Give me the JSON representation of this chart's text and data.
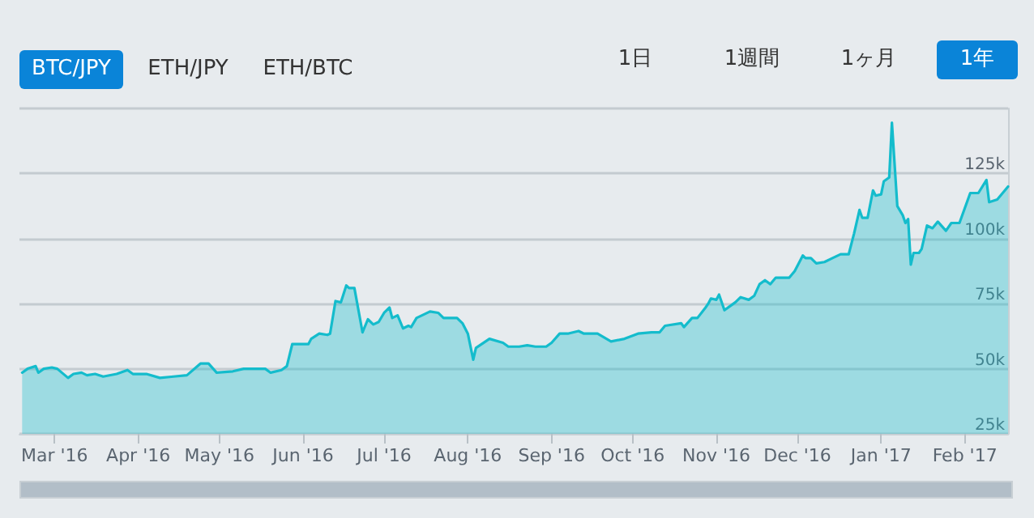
{
  "chart_data": {
    "type": "area",
    "annotations": [
      "BTC/JPY",
      "ETH/JPY",
      "ETH/BTC",
      "1日",
      "1週間",
      "1ヶ月",
      "1年"
    ],
    "x": [
      "2016-02-18",
      "2016-02-20",
      "2016-02-23",
      "2016-02-24",
      "2016-02-26",
      "2016-02-29",
      "2016-03-02",
      "2016-03-06",
      "2016-03-08",
      "2016-03-11",
      "2016-03-13",
      "2016-03-16",
      "2016-03-19",
      "2016-03-24",
      "2016-03-28",
      "2016-03-30",
      "2016-04-04",
      "2016-04-09",
      "2016-04-14",
      "2016-04-19",
      "2016-04-24",
      "2016-04-27",
      "2016-04-30",
      "2016-05-06",
      "2016-05-10",
      "2016-05-18",
      "2016-05-20",
      "2016-05-24",
      "2016-05-26",
      "2016-05-28",
      "2016-06-03",
      "2016-06-04",
      "2016-06-07",
      "2016-06-10",
      "2016-06-11",
      "2016-06-13",
      "2016-06-15",
      "2016-06-17",
      "2016-06-18",
      "2016-06-20",
      "2016-06-23",
      "2016-06-25",
      "2016-06-27",
      "2016-06-29",
      "2016-07-01",
      "2016-07-03",
      "2016-07-04",
      "2016-07-06",
      "2016-07-08",
      "2016-07-10",
      "2016-07-11",
      "2016-07-13",
      "2016-07-18",
      "2016-07-21",
      "2016-07-23",
      "2016-07-28",
      "2016-07-30",
      "2016-08-01",
      "2016-08-03",
      "2016-08-04",
      "2016-08-09",
      "2016-08-14",
      "2016-08-16",
      "2016-08-20",
      "2016-08-23",
      "2016-08-26",
      "2016-08-30",
      "2016-09-01",
      "2016-09-04",
      "2016-09-07",
      "2016-09-11",
      "2016-09-13",
      "2016-09-18",
      "2016-09-23",
      "2016-09-28",
      "2016-10-03",
      "2016-10-08",
      "2016-10-11",
      "2016-10-13",
      "2016-10-19",
      "2016-10-20",
      "2016-10-23",
      "2016-10-25",
      "2016-10-28",
      "2016-10-29",
      "2016-10-30",
      "2016-11-01",
      "2016-11-02",
      "2016-11-04",
      "2016-11-06",
      "2016-11-08",
      "2016-11-10",
      "2016-11-13",
      "2016-11-15",
      "2016-11-17",
      "2016-11-19",
      "2016-11-21",
      "2016-11-23",
      "2016-11-28",
      "2016-11-30",
      "2016-12-03",
      "2016-12-04",
      "2016-12-06",
      "2016-12-08",
      "2016-12-11",
      "2016-12-14",
      "2016-12-17",
      "2016-12-20",
      "2016-12-22",
      "2016-12-24",
      "2016-12-25",
      "2016-12-27",
      "2016-12-29",
      "2016-12-30",
      "2017-01-01",
      "2017-01-02",
      "2017-01-04",
      "2017-01-05",
      "2017-01-07",
      "2017-01-09",
      "2017-01-10",
      "2017-01-11",
      "2017-01-12",
      "2017-01-13",
      "2017-01-15",
      "2017-01-16",
      "2017-01-18",
      "2017-01-20",
      "2017-01-22",
      "2017-01-25",
      "2017-01-27",
      "2017-01-30",
      "2017-02-03",
      "2017-02-06",
      "2017-02-09",
      "2017-02-10",
      "2017-02-13",
      "2017-02-17"
    ],
    "series": [
      {
        "color": "#14bccc",
        "values": [
          48500,
          50000,
          51000,
          48500,
          50000,
          50500,
          50000,
          46500,
          48000,
          48500,
          47500,
          48000,
          47000,
          48000,
          49500,
          48000,
          48000,
          46500,
          47000,
          47500,
          52000,
          52000,
          48500,
          49000,
          50000,
          50000,
          48500,
          49500,
          51000,
          59500,
          59500,
          61500,
          63500,
          63000,
          63500,
          76000,
          75500,
          82000,
          81000,
          81000,
          64000,
          69000,
          67000,
          68000,
          71500,
          73500,
          69500,
          70500,
          65500,
          66500,
          66000,
          69500,
          72000,
          71500,
          69500,
          69500,
          67500,
          63500,
          53500,
          58000,
          61500,
          60000,
          58500,
          58500,
          59000,
          58500,
          58500,
          60000,
          63500,
          63500,
          64500,
          63500,
          63500,
          60500,
          61500,
          63500,
          64000,
          64000,
          66500,
          67500,
          66000,
          69500,
          69500,
          73500,
          75000,
          77000,
          76500,
          78500,
          72500,
          74000,
          75500,
          77500,
          76500,
          78000,
          82500,
          84000,
          82500,
          85000,
          85000,
          87500,
          93500,
          92500,
          92500,
          90500,
          91000,
          92500,
          94000,
          94000,
          102000,
          111000,
          108000,
          108000,
          118500,
          116500,
          117000,
          122000,
          123500,
          144500,
          112500,
          109000,
          106000,
          107500,
          90000,
          94500,
          94500,
          96000,
          105000,
          104000,
          106500,
          103000,
          106000,
          106000,
          117500,
          117500,
          122500,
          114000,
          115000,
          120000
        ]
      }
    ],
    "xlim": [
      "2016-02-17",
      "2017-02-17"
    ],
    "xticks": [
      {
        "value": "2016-03-01",
        "label": "Mar '16"
      },
      {
        "value": "2016-04-01",
        "label": "Apr '16"
      },
      {
        "value": "2016-05-01",
        "label": "May '16"
      },
      {
        "value": "2016-06-01",
        "label": "Jun '16"
      },
      {
        "value": "2016-07-01",
        "label": "Jul '16"
      },
      {
        "value": "2016-08-01",
        "label": "Aug '16"
      },
      {
        "value": "2016-09-01",
        "label": "Sep '16"
      },
      {
        "value": "2016-10-01",
        "label": "Oct '16"
      },
      {
        "value": "2016-11-01",
        "label": "Nov '16"
      },
      {
        "value": "2016-12-01",
        "label": "Dec '16"
      },
      {
        "value": "2017-01-01",
        "label": "Jan '17"
      },
      {
        "value": "2017-02-01",
        "label": "Feb '17"
      }
    ],
    "ylim": [
      25000,
      150000
    ],
    "yticks": [
      {
        "value": 25000,
        "label": "25k"
      },
      {
        "value": 50000,
        "label": "50k"
      },
      {
        "value": 75000,
        "label": "75k"
      },
      {
        "value": 100000,
        "label": "100k"
      },
      {
        "value": 125000,
        "label": "125k"
      },
      {
        "value": 150000,
        "label": null
      }
    ],
    "grid": "y",
    "marker": "none",
    "line_style": "solid"
  }
}
